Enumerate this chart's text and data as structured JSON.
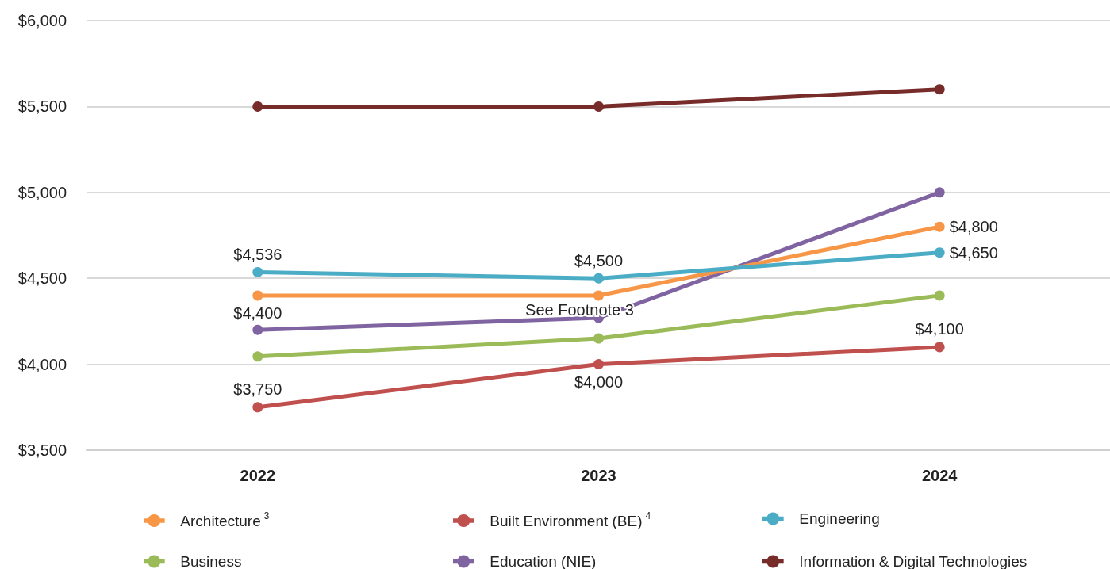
{
  "chart_data": {
    "type": "line",
    "categories": [
      "2022",
      "2023",
      "2024"
    ],
    "series": [
      {
        "name": "Architecture$^{3}$",
        "color": "#f79646",
        "values": [
          4400,
          4400,
          4800
        ],
        "value_labels": [
          "$4,400",
          "See Footnote 3",
          "$4,800"
        ]
      },
      {
        "name": "Built Environment (BE)$^{4}$",
        "color": "#c0504d",
        "values": [
          3750,
          4000,
          4100
        ],
        "value_labels": [
          "$3,750",
          "$4,000",
          "$4,100"
        ]
      },
      {
        "name": "Engineering",
        "color": "#4bacc6",
        "values": [
          4536,
          4500,
          4650
        ],
        "value_labels": [
          "$4,536",
          "$4,500",
          "$4,650"
        ]
      },
      {
        "name": "Business",
        "color": "#9bbb59",
        "values": [
          4045,
          4150,
          4400
        ]
      },
      {
        "name": "Education (NIE)",
        "color": "#8064a2",
        "values": [
          4200,
          4270,
          5000
        ]
      },
      {
        "name": "Information & Digital Technologies",
        "color": "#772c2a",
        "values": [
          5500,
          5500,
          5600
        ]
      }
    ],
    "ylim": [
      3500,
      6000
    ],
    "yticks": [
      {
        "value": 3500,
        "label": "$3,500"
      },
      {
        "value": 4000,
        "label": "$4,000"
      },
      {
        "value": 4500,
        "label": "$4,500"
      },
      {
        "value": 5000,
        "label": "$5,000"
      },
      {
        "value": 5500,
        "label": "$5,500"
      },
      {
        "value": 6000,
        "label": "$6,000"
      }
    ],
    "grid": "y",
    "legend": "bottom",
    "marker": "circle",
    "line_style": "solid"
  }
}
